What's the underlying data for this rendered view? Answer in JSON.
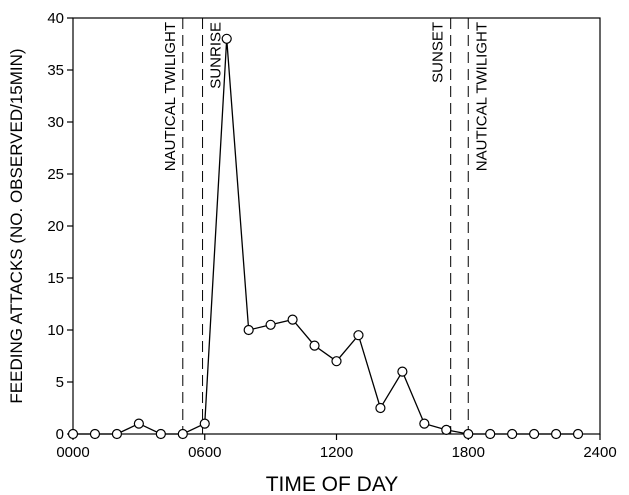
{
  "chart_data": {
    "type": "line",
    "xlabel": "TIME OF DAY",
    "ylabel": "FEEDING ATTACKS (NO. OBSERVED/15MIN)",
    "xlim": [
      0,
      2400
    ],
    "ylim": [
      0,
      40
    ],
    "x_ticks": [
      {
        "value": 0,
        "label": "0000"
      },
      {
        "value": 600,
        "label": "0600"
      },
      {
        "value": 1200,
        "label": "1200"
      },
      {
        "value": 1800,
        "label": "1800"
      },
      {
        "value": 2400,
        "label": "2400"
      }
    ],
    "y_ticks": [
      {
        "value": 0,
        "label": "0"
      },
      {
        "value": 5,
        "label": "5"
      },
      {
        "value": 10,
        "label": "10"
      },
      {
        "value": 15,
        "label": "15"
      },
      {
        "value": 20,
        "label": "20"
      },
      {
        "value": 25,
        "label": "25"
      },
      {
        "value": 30,
        "label": "30"
      },
      {
        "value": 35,
        "label": "35"
      },
      {
        "value": 40,
        "label": "40"
      }
    ],
    "grid": false,
    "marker": "open-circle",
    "series": [
      {
        "x": [
          0,
          100,
          200,
          300,
          400,
          500,
          600,
          700,
          800,
          900,
          1000,
          1100,
          1200,
          1300,
          1400,
          1500,
          1600,
          1700,
          1800,
          1900,
          2000,
          2100,
          2200,
          2300
        ],
        "y": [
          0,
          0,
          0,
          1,
          0,
          0,
          1,
          38,
          10,
          10.5,
          11,
          8.5,
          7,
          9.5,
          2.5,
          6,
          1,
          0.4,
          0,
          0,
          0,
          0,
          0,
          0
        ]
      }
    ],
    "reference_lines": [
      {
        "x": 500,
        "label": "NAUTICAL TWILIGHT",
        "label_side": "left"
      },
      {
        "x": 590,
        "label": "SUNRISE",
        "label_side": "right"
      },
      {
        "x": 1720,
        "label": "SUNSET",
        "label_side": "left"
      },
      {
        "x": 1800,
        "label": "NAUTICAL TWILIGHT",
        "label_side": "right"
      }
    ]
  }
}
